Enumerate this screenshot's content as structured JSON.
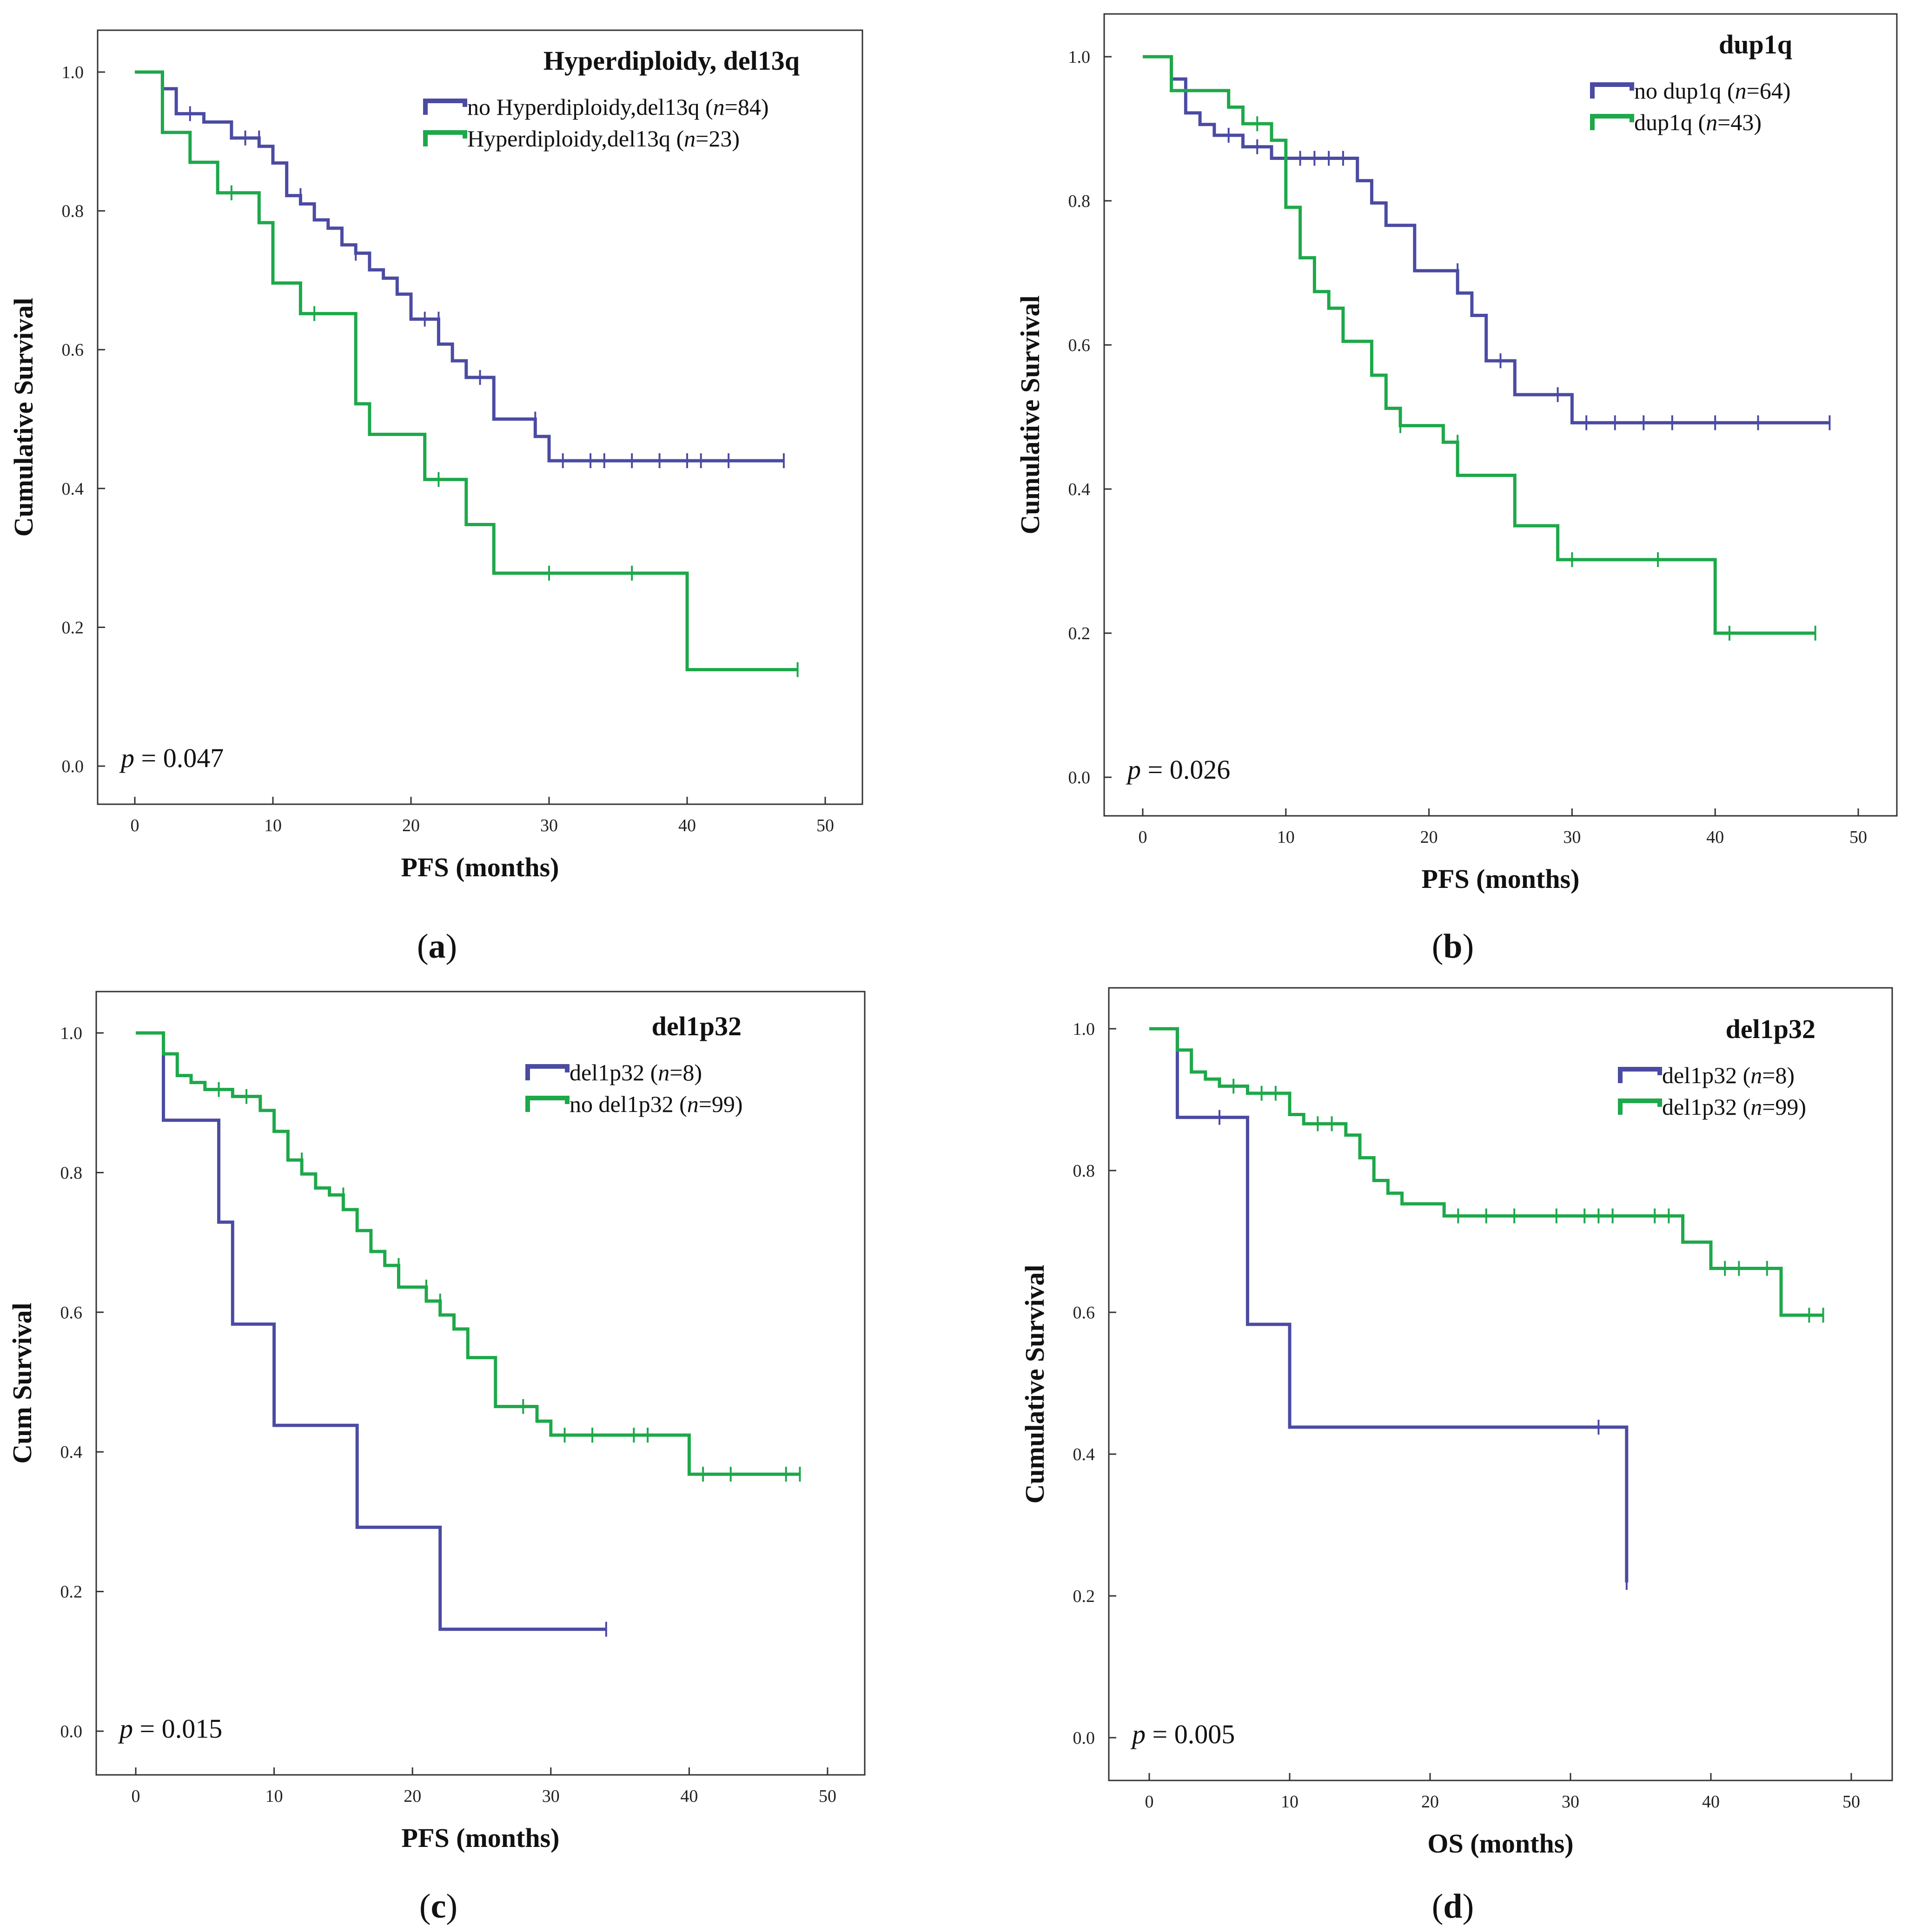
{
  "colors": {
    "blue": "#4b4ba3",
    "green": "#1ea84a"
  },
  "chart_data": [
    {
      "type": "line",
      "subtype": "kaplan-meier",
      "panel_label": "a",
      "title": "Hyperdiploidy, del13q",
      "xlabel": "PFS (months)",
      "ylabel": "Cumulative Survival",
      "xlim": [
        0,
        50
      ],
      "ylim": [
        0,
        1
      ],
      "xticks": [
        "0",
        "10",
        "20",
        "30",
        "40",
        "50"
      ],
      "yticks": [
        "0.0",
        "0.2",
        "0.4",
        "0.6",
        "0.8",
        "1.0"
      ],
      "p_value": "0.047",
      "series": [
        {
          "label": "no Hyperdiploidy,del13q",
          "n": "84",
          "color": "blue",
          "steps": [
            [
              0,
              1
            ],
            [
              2,
              0.976
            ],
            [
              3,
              0.94
            ],
            [
              5,
              0.928
            ],
            [
              7,
              0.905
            ],
            [
              9,
              0.893
            ],
            [
              10,
              0.869
            ],
            [
              11,
              0.822
            ],
            [
              12,
              0.81
            ],
            [
              13,
              0.787
            ],
            [
              14,
              0.775
            ],
            [
              15,
              0.751
            ],
            [
              16,
              0.739
            ],
            [
              17,
              0.715
            ],
            [
              18,
              0.703
            ],
            [
              19,
              0.68
            ],
            [
              20,
              0.644
            ],
            [
              22,
              0.608
            ],
            [
              23,
              0.584
            ],
            [
              24,
              0.56
            ],
            [
              26,
              0.5
            ],
            [
              29,
              0.475
            ],
            [
              30,
              0.44
            ]
          ],
          "end": 47,
          "censors": [
            [
              4,
              0.94
            ],
            [
              8,
              0.905
            ],
            [
              9,
              0.905
            ],
            [
              12,
              0.822
            ],
            [
              16,
              0.739
            ],
            [
              21,
              0.644
            ],
            [
              22,
              0.644
            ],
            [
              25,
              0.56
            ],
            [
              29,
              0.5
            ],
            [
              31,
              0.44
            ],
            [
              33,
              0.44
            ],
            [
              34,
              0.44
            ],
            [
              36,
              0.44
            ],
            [
              38,
              0.44
            ],
            [
              40,
              0.44
            ],
            [
              41,
              0.44
            ],
            [
              43,
              0.44
            ],
            [
              47,
              0.44
            ]
          ]
        },
        {
          "label": "Hyperdiploidy,del13q",
          "n": "23",
          "color": "green",
          "steps": [
            [
              0,
              1
            ],
            [
              2,
              0.913
            ],
            [
              4,
              0.87
            ],
            [
              6,
              0.826
            ],
            [
              9,
              0.783
            ],
            [
              10,
              0.696
            ],
            [
              12,
              0.652
            ],
            [
              16,
              0.522
            ],
            [
              17,
              0.478
            ],
            [
              21,
              0.413
            ],
            [
              24,
              0.348
            ],
            [
              26,
              0.278
            ],
            [
              40,
              0.139
            ]
          ],
          "end": 48,
          "censors": [
            [
              7,
              0.826
            ],
            [
              13,
              0.652
            ],
            [
              22,
              0.413
            ],
            [
              30,
              0.278
            ],
            [
              36,
              0.278
            ],
            [
              48,
              0.139
            ]
          ]
        }
      ]
    },
    {
      "type": "line",
      "subtype": "kaplan-meier",
      "panel_label": "b",
      "title": "dup1q",
      "xlabel": "PFS (months)",
      "ylabel": "Cumulative Survival",
      "xlim": [
        0,
        50
      ],
      "ylim": [
        0,
        1
      ],
      "xticks": [
        "0",
        "10",
        "20",
        "30",
        "40",
        "50"
      ],
      "yticks": [
        "0.0",
        "0.2",
        "0.4",
        "0.6",
        "0.8",
        "1.0"
      ],
      "p_value": "0.026",
      "series": [
        {
          "label": "no dup1q",
          "n": "64",
          "color": "blue",
          "steps": [
            [
              0,
              1
            ],
            [
              2,
              0.969
            ],
            [
              3,
              0.922
            ],
            [
              4,
              0.906
            ],
            [
              5,
              0.891
            ],
            [
              7,
              0.875
            ],
            [
              9,
              0.859
            ],
            [
              15,
              0.828
            ],
            [
              16,
              0.797
            ],
            [
              17,
              0.766
            ],
            [
              19,
              0.703
            ],
            [
              22,
              0.672
            ],
            [
              23,
              0.641
            ],
            [
              24,
              0.578
            ],
            [
              26,
              0.531
            ],
            [
              30,
              0.492
            ]
          ],
          "end": 48,
          "censors": [
            [
              6,
              0.891
            ],
            [
              8,
              0.875
            ],
            [
              10,
              0.859
            ],
            [
              11,
              0.859
            ],
            [
              12,
              0.859
            ],
            [
              13,
              0.859
            ],
            [
              14,
              0.859
            ],
            [
              22,
              0.703
            ],
            [
              25,
              0.578
            ],
            [
              29,
              0.531
            ],
            [
              31,
              0.492
            ],
            [
              33,
              0.492
            ],
            [
              35,
              0.492
            ],
            [
              37,
              0.492
            ],
            [
              40,
              0.492
            ],
            [
              43,
              0.492
            ],
            [
              48,
              0.492
            ]
          ]
        },
        {
          "label": "dup1q",
          "n": "43",
          "color": "green",
          "steps": [
            [
              0,
              1
            ],
            [
              2,
              0.953
            ],
            [
              6,
              0.93
            ],
            [
              7,
              0.907
            ],
            [
              9,
              0.884
            ],
            [
              10,
              0.791
            ],
            [
              11,
              0.721
            ],
            [
              12,
              0.674
            ],
            [
              13,
              0.651
            ],
            [
              14,
              0.605
            ],
            [
              16,
              0.558
            ],
            [
              17,
              0.512
            ],
            [
              18,
              0.488
            ],
            [
              21,
              0.465
            ],
            [
              22,
              0.419
            ],
            [
              26,
              0.349
            ],
            [
              29,
              0.302
            ],
            [
              40,
              0.2
            ]
          ],
          "end": 47,
          "censors": [
            [
              8,
              0.907
            ],
            [
              18,
              0.488
            ],
            [
              22,
              0.465
            ],
            [
              30,
              0.302
            ],
            [
              36,
              0.302
            ],
            [
              41,
              0.2
            ],
            [
              47,
              0.2
            ]
          ]
        }
      ]
    },
    {
      "type": "line",
      "subtype": "kaplan-meier",
      "panel_label": "c",
      "title": "del1p32",
      "xlabel": "PFS (months)",
      "ylabel": "Cum Survival",
      "xlim": [
        0,
        50
      ],
      "ylim": [
        0,
        1
      ],
      "xticks": [
        "0",
        "10",
        "20",
        "30",
        "40",
        "50"
      ],
      "yticks": [
        "0.0",
        "0.2",
        "0.4",
        "0.6",
        "0.8",
        "1.0"
      ],
      "p_value": "0.015",
      "series": [
        {
          "label": "del1p32",
          "n": "8",
          "color": "blue",
          "steps": [
            [
              0,
              1
            ],
            [
              2,
              0.875
            ],
            [
              6,
              0.729
            ],
            [
              7,
              0.583
            ],
            [
              10,
              0.438
            ],
            [
              16,
              0.292
            ],
            [
              22,
              0.146
            ]
          ],
          "end": 34,
          "censors": [
            [
              34,
              0.146
            ]
          ]
        },
        {
          "label": "no del1p32",
          "n": "99",
          "color": "green",
          "steps": [
            [
              0,
              1
            ],
            [
              2,
              0.97
            ],
            [
              3,
              0.939
            ],
            [
              4,
              0.929
            ],
            [
              5,
              0.919
            ],
            [
              7,
              0.909
            ],
            [
              9,
              0.889
            ],
            [
              10,
              0.859
            ],
            [
              11,
              0.818
            ],
            [
              12,
              0.798
            ],
            [
              13,
              0.778
            ],
            [
              14,
              0.768
            ],
            [
              15,
              0.747
            ],
            [
              16,
              0.717
            ],
            [
              17,
              0.687
            ],
            [
              18,
              0.667
            ],
            [
              19,
              0.636
            ],
            [
              21,
              0.616
            ],
            [
              22,
              0.596
            ],
            [
              23,
              0.576
            ],
            [
              24,
              0.535
            ],
            [
              26,
              0.465
            ],
            [
              29,
              0.444
            ],
            [
              30,
              0.424
            ],
            [
              40,
              0.368
            ]
          ],
          "end": 48,
          "censors": [
            [
              6,
              0.919
            ],
            [
              8,
              0.909
            ],
            [
              12,
              0.818
            ],
            [
              15,
              0.768
            ],
            [
              19,
              0.667
            ],
            [
              21,
              0.636
            ],
            [
              22,
              0.616
            ],
            [
              28,
              0.465
            ],
            [
              31,
              0.424
            ],
            [
              33,
              0.424
            ],
            [
              36,
              0.424
            ],
            [
              37,
              0.424
            ],
            [
              41,
              0.368
            ],
            [
              43,
              0.368
            ],
            [
              47,
              0.368
            ],
            [
              48,
              0.368
            ]
          ]
        }
      ]
    },
    {
      "type": "line",
      "subtype": "kaplan-meier",
      "panel_label": "d",
      "title": "del1p32",
      "xlabel": "OS (months)",
      "ylabel": "Cumulative Survival",
      "xlim": [
        0,
        50
      ],
      "ylim": [
        0,
        1
      ],
      "xticks": [
        "0",
        "10",
        "20",
        "30",
        "40",
        "50"
      ],
      "yticks": [
        "0.0",
        "0.2",
        "0.4",
        "0.6",
        "0.8",
        "1.0"
      ],
      "p_value": "0.005",
      "series": [
        {
          "label": "del1p32",
          "n": "8",
          "color": "blue",
          "steps": [
            [
              0,
              1
            ],
            [
              2,
              0.875
            ],
            [
              7,
              0.583
            ],
            [
              10,
              0.438
            ],
            [
              34,
              0.219
            ]
          ],
          "end": 34,
          "censors": [
            [
              5,
              0.875
            ],
            [
              32,
              0.438
            ],
            [
              34,
              0.219
            ]
          ]
        },
        {
          "label": "del1p32",
          "n": "99",
          "color": "green",
          "steps": [
            [
              0,
              1
            ],
            [
              2,
              0.97
            ],
            [
              3,
              0.939
            ],
            [
              4,
              0.929
            ],
            [
              5,
              0.919
            ],
            [
              7,
              0.909
            ],
            [
              10,
              0.879
            ],
            [
              11,
              0.866
            ],
            [
              14,
              0.85
            ],
            [
              15,
              0.818
            ],
            [
              16,
              0.786
            ],
            [
              17,
              0.768
            ],
            [
              18,
              0.753
            ],
            [
              21,
              0.736
            ],
            [
              38,
              0.699
            ],
            [
              40,
              0.662
            ],
            [
              45,
              0.596
            ]
          ],
          "end": 48,
          "censors": [
            [
              6,
              0.919
            ],
            [
              8,
              0.909
            ],
            [
              9,
              0.909
            ],
            [
              12,
              0.866
            ],
            [
              13,
              0.866
            ],
            [
              22,
              0.736
            ],
            [
              24,
              0.736
            ],
            [
              26,
              0.736
            ],
            [
              29,
              0.736
            ],
            [
              31,
              0.736
            ],
            [
              32,
              0.736
            ],
            [
              33,
              0.736
            ],
            [
              36,
              0.736
            ],
            [
              37,
              0.736
            ],
            [
              41,
              0.662
            ],
            [
              42,
              0.662
            ],
            [
              44,
              0.662
            ],
            [
              47,
              0.596
            ],
            [
              48,
              0.596
            ]
          ]
        }
      ]
    }
  ]
}
